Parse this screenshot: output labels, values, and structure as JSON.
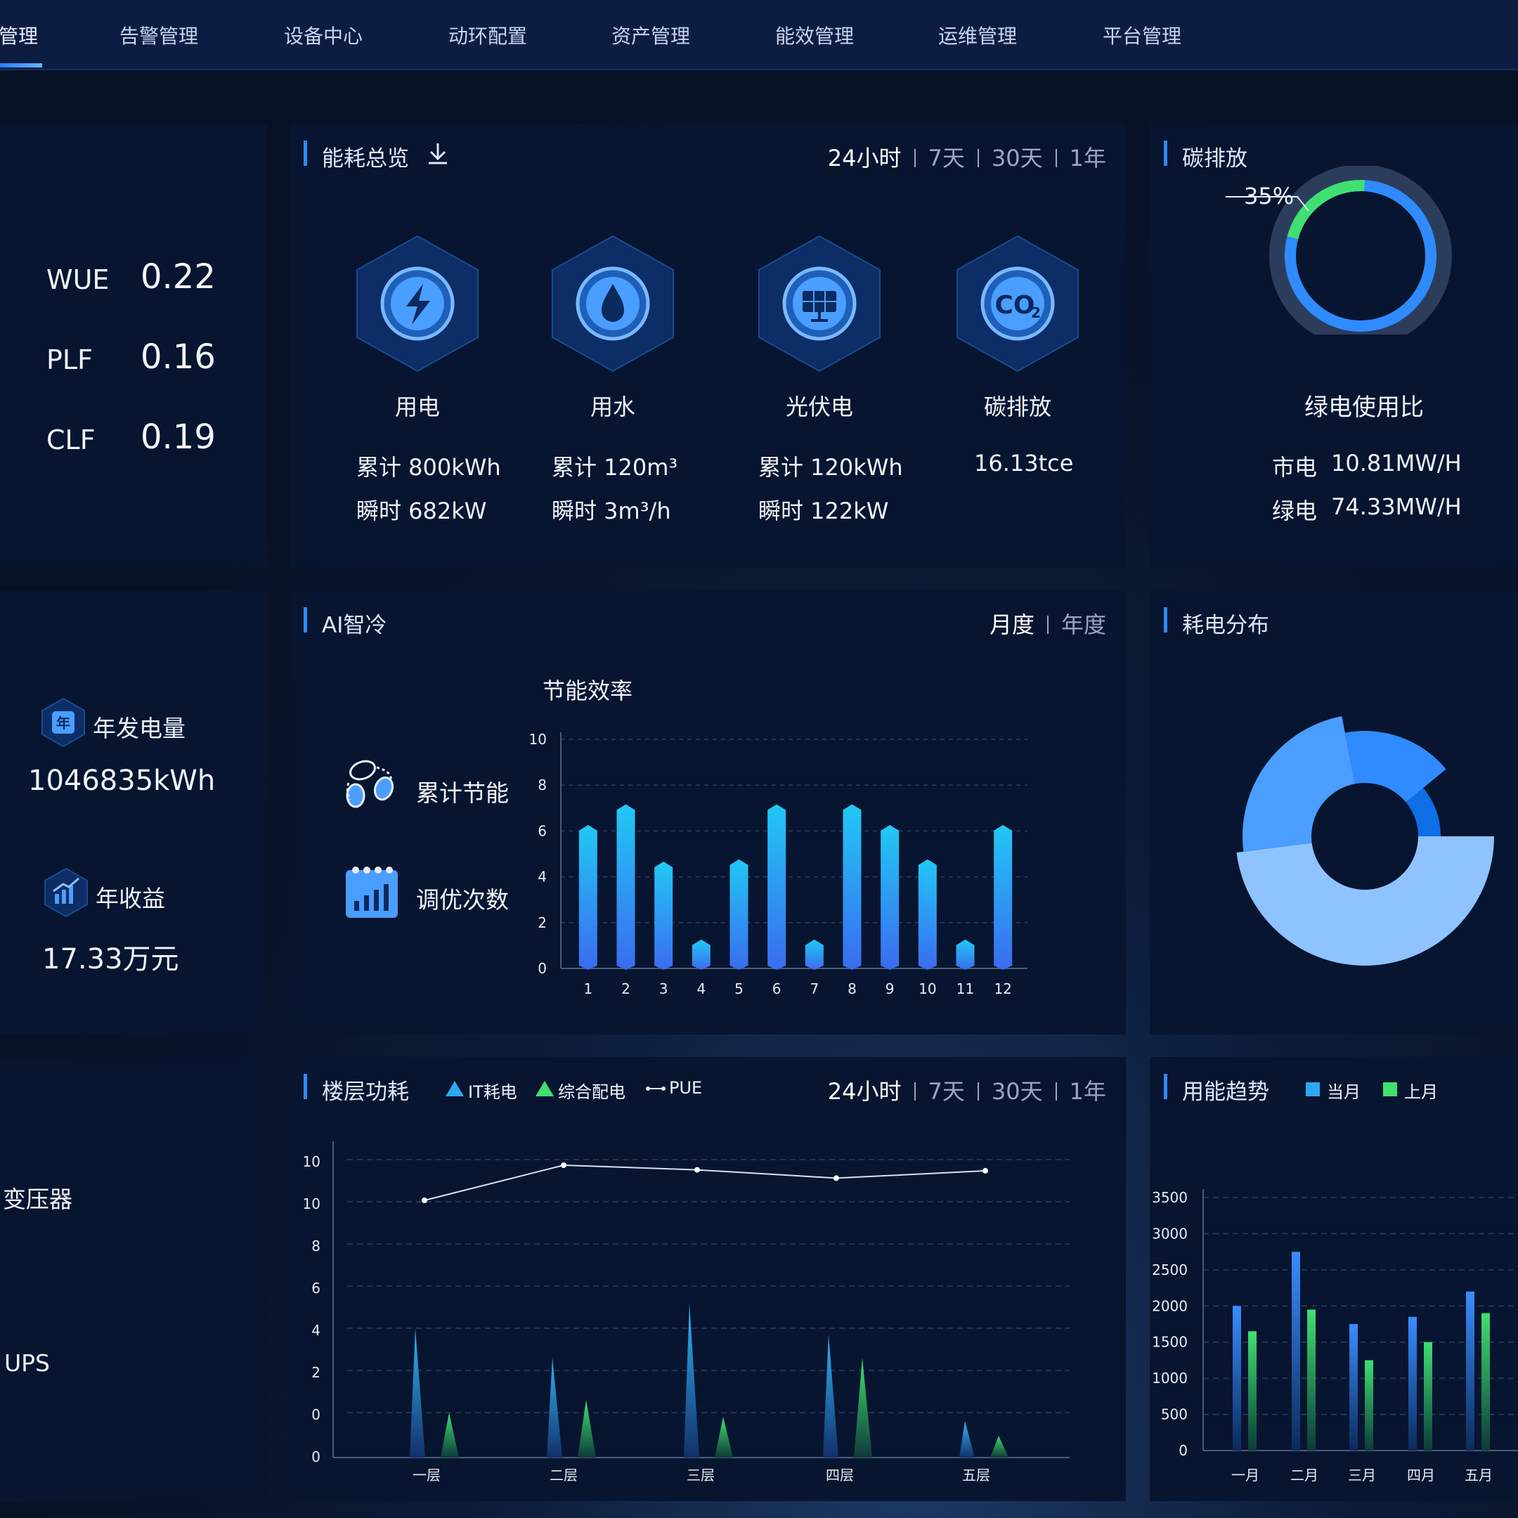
{
  "nav": {
    "items": [
      {
        "label": "管理",
        "active": true
      },
      {
        "label": "告警管理"
      },
      {
        "label": "设备中心"
      },
      {
        "label": "动环配置"
      },
      {
        "label": "资产管理"
      },
      {
        "label": "能效管理"
      },
      {
        "label": "运维管理"
      },
      {
        "label": "平台管理"
      }
    ]
  },
  "kpis": [
    {
      "label": "WUE",
      "value": "0.22"
    },
    {
      "label": "PLF",
      "value": "0.16"
    },
    {
      "label": "CLF",
      "value": "0.19"
    }
  ],
  "energy_overview": {
    "title": "能耗总览",
    "ranges": [
      "24小时",
      "7天",
      "30天",
      "1年"
    ],
    "cards": [
      {
        "icon": "lightning-icon",
        "name": "用电",
        "line1": "累计 800kWh",
        "line2": "瞬时 682kW"
      },
      {
        "icon": "water-drop-icon",
        "name": "用水",
        "line1": "累计 120m³",
        "line2": "瞬时 3m³/h"
      },
      {
        "icon": "solar-panel-icon",
        "name": "光伏电",
        "line1": "累计 120kWh",
        "line2": "瞬时 122kW"
      },
      {
        "icon": "co2-icon",
        "name": "碳排放",
        "line1": "16.13tce",
        "line2": ""
      }
    ]
  },
  "carbon": {
    "title": "碳排放",
    "percent_label": "35%",
    "green_fraction": 0.35,
    "caption": "绿电使用比",
    "rows": [
      {
        "label": "市电",
        "value": "10.81MW/H"
      },
      {
        "label": "绿电",
        "value": "74.33MW/H"
      }
    ],
    "colors": {
      "grid": "#2f8bff",
      "green": "#3fe070"
    }
  },
  "generation": {
    "year_label": "年发电量",
    "year_icon_text": "年",
    "year_value": "1046835kWh",
    "income_label": "年收益",
    "income_value": "17.33万元"
  },
  "ai_cooling": {
    "title": "AI智冷",
    "ranges": [
      "月度",
      "年度"
    ],
    "legend": [
      {
        "icon": "leaves-icon",
        "label": "累计节能"
      },
      {
        "icon": "bar-calendar-icon",
        "label": "调优次数"
      }
    ]
  },
  "power_distribution": {
    "title": "耗电分布",
    "slices": [
      {
        "value": 48,
        "color": "#8ec3ff"
      },
      {
        "value": 24,
        "color": "#4a9eff"
      },
      {
        "value": 17,
        "color": "#2f8bff"
      },
      {
        "value": 11,
        "color": "#0e6fe6"
      }
    ]
  },
  "floor": {
    "title": "楼层功耗",
    "legend": [
      "IT耗电",
      "综合配电",
      "PUE"
    ],
    "ranges": [
      "24小时",
      "7天",
      "30天",
      "1年"
    ]
  },
  "left_bottom": {
    "items": [
      "变压器",
      "UPS"
    ]
  },
  "trend": {
    "title": "用能趋势",
    "legend": [
      "当月",
      "上月"
    ]
  },
  "chart_data": [
    {
      "type": "bar",
      "title": "节能效率",
      "categories": [
        "1",
        "2",
        "3",
        "4",
        "5",
        "6",
        "7",
        "8",
        "9",
        "10",
        "11",
        "12"
      ],
      "values": [
        6.2,
        7.1,
        4.6,
        1.2,
        4.7,
        7.1,
        1.2,
        7.1,
        6.2,
        4.7,
        1.2,
        6.2
      ],
      "yticks": [
        "0",
        "2",
        "4",
        "6",
        "8",
        "10"
      ],
      "ylim": [
        0,
        10
      ],
      "grid": true
    },
    {
      "type": "area",
      "categories": [
        "一层",
        "二层",
        "三层",
        "四层",
        "五层"
      ],
      "yticks": [
        "0",
        "0",
        "2",
        "4",
        "6",
        "8",
        "10",
        "10"
      ],
      "series": [
        {
          "name": "IT耗电",
          "values": [
            6.0,
            4.6,
            7.2,
            5.7,
            1.6
          ]
        },
        {
          "name": "综合配电",
          "values": [
            2.0,
            2.6,
            1.8,
            4.6,
            0.9
          ]
        },
        {
          "name": "PUE",
          "values": [
            10.0,
            13.8,
            13.3,
            12.4,
            13.2
          ]
        }
      ],
      "grid": true
    },
    {
      "type": "bar",
      "categories": [
        "一月",
        "二月",
        "三月",
        "四月",
        "五月"
      ],
      "yticks": [
        "0",
        "500",
        "1000",
        "1500",
        "2000",
        "2500",
        "3000",
        "3500"
      ],
      "ylim": [
        0,
        3500
      ],
      "series": [
        {
          "name": "当月",
          "values": [
            2000,
            2750,
            1750,
            1850,
            2200
          ]
        },
        {
          "name": "上月",
          "values": [
            1650,
            1950,
            1250,
            1500,
            1900
          ]
        }
      ],
      "grid": true
    }
  ]
}
